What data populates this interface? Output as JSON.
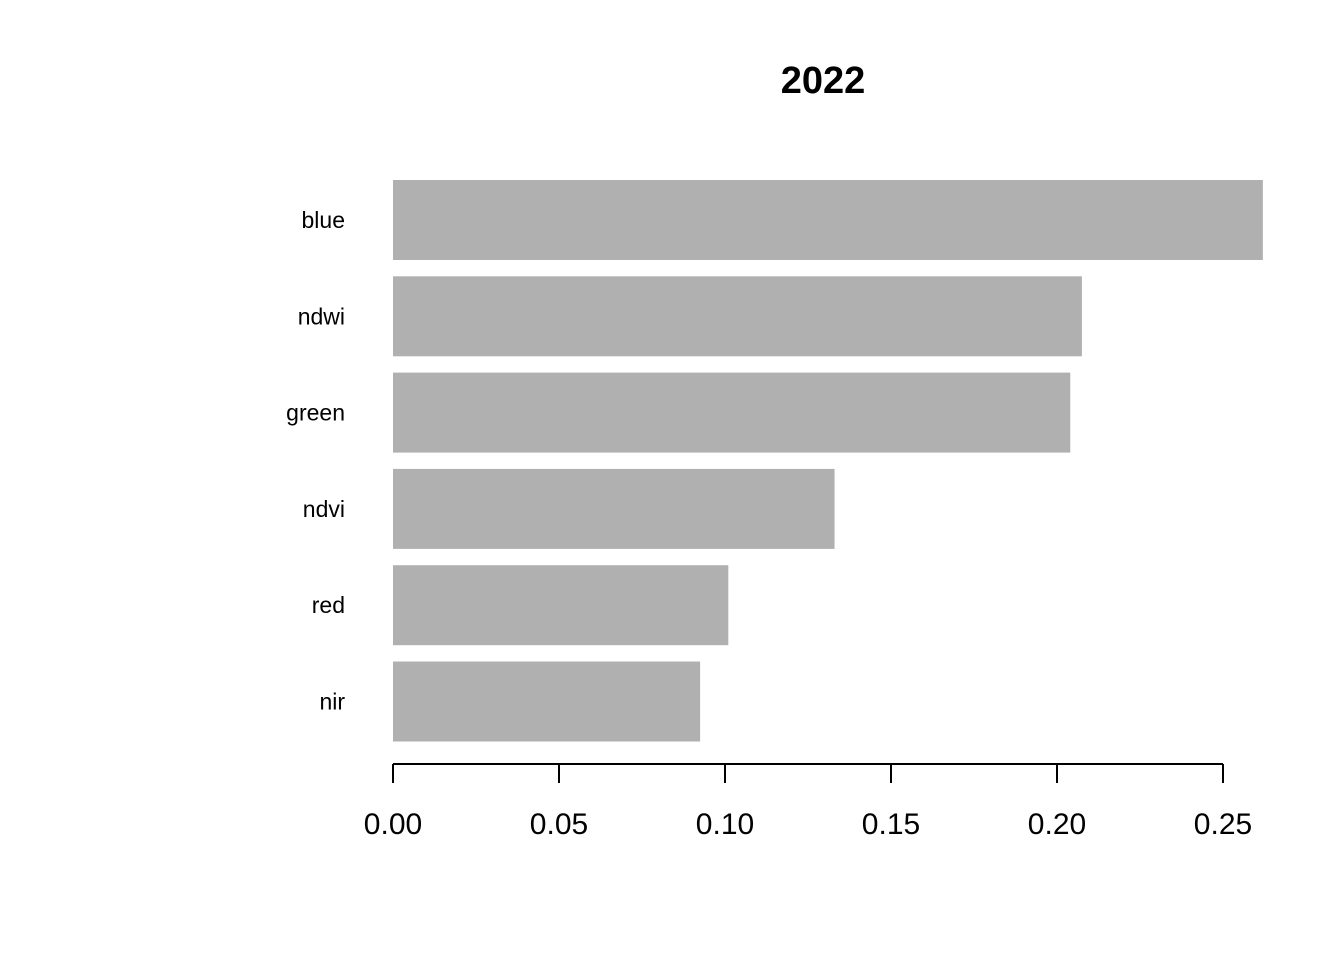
{
  "chart_data": {
    "type": "bar",
    "orientation": "horizontal",
    "title": "2022",
    "xlabel": "",
    "ylabel": "",
    "categories": [
      "blue",
      "ndwi",
      "green",
      "ndvi",
      "red",
      "nir"
    ],
    "values": [
      0.262,
      0.2075,
      0.204,
      0.133,
      0.101,
      0.0925
    ],
    "xlim": [
      0,
      0.25
    ],
    "x_ticks": [
      0,
      0.05,
      0.1,
      0.15,
      0.2,
      0.25
    ],
    "x_tick_labels": [
      "0.00",
      "0.05",
      "0.10",
      "0.15",
      "0.20",
      "0.25"
    ],
    "bar_color": "#b0b0b0",
    "grid": false,
    "legend": false
  }
}
